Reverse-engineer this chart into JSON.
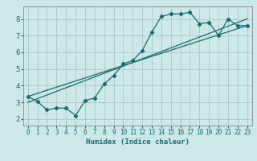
{
  "xlabel": "Humidex (Indice chaleur)",
  "bg_color": "#cce8e8",
  "grid_color": "#b0cccc",
  "line_color": "#1a6b6b",
  "spine_color": "#888888",
  "xlim": [
    -0.5,
    23.5
  ],
  "ylim": [
    1.6,
    8.75
  ],
  "xticks": [
    0,
    1,
    2,
    3,
    4,
    5,
    6,
    7,
    8,
    9,
    10,
    11,
    12,
    13,
    14,
    15,
    16,
    17,
    18,
    19,
    20,
    21,
    22,
    23
  ],
  "yticks": [
    2,
    3,
    4,
    5,
    6,
    7,
    8
  ],
  "line1_x": [
    0,
    1,
    2,
    3,
    4,
    5,
    6,
    7,
    8,
    9,
    10,
    11,
    12,
    13,
    14,
    15,
    16,
    17,
    18,
    19,
    20,
    21,
    22,
    23
  ],
  "line1_y": [
    3.35,
    3.05,
    2.55,
    2.65,
    2.65,
    2.2,
    3.1,
    3.25,
    4.1,
    4.6,
    5.3,
    5.5,
    6.1,
    7.2,
    8.15,
    8.3,
    8.3,
    8.4,
    7.7,
    7.8,
    7.0,
    8.0,
    7.6,
    7.6
  ],
  "line2_x": [
    0,
    23
  ],
  "line2_y": [
    3.0,
    8.0
  ],
  "line3_x": [
    0,
    23
  ],
  "line3_y": [
    3.35,
    7.6
  ],
  "xlabel_fontsize": 6.5,
  "tick_fontsize": 5.5,
  "ytick_fontsize": 6.5
}
